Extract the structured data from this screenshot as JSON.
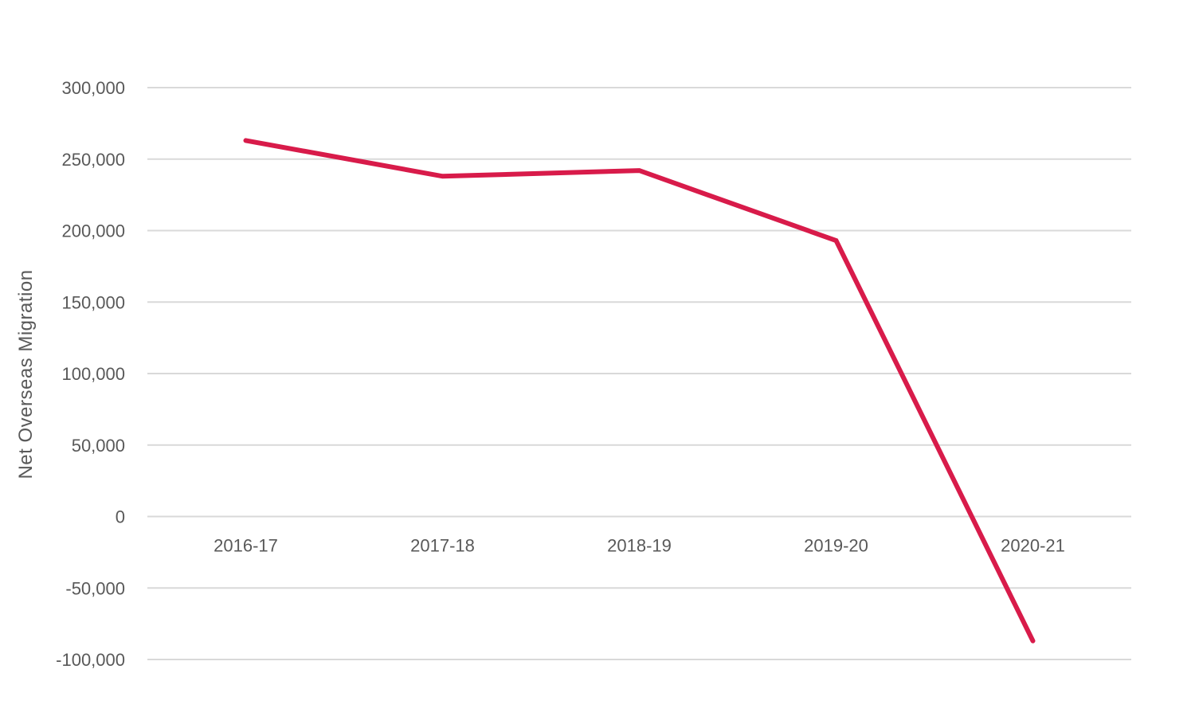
{
  "chart_data": {
    "type": "line",
    "title": "",
    "xlabel": "",
    "ylabel": "Net Overseas Migration",
    "categories": [
      "2016-17",
      "2017-18",
      "2018-19",
      "2019-20",
      "2020-21"
    ],
    "series": [
      {
        "values": [
          263000,
          238000,
          242000,
          193000,
          -87000
        ],
        "color": "#D81B4A"
      }
    ],
    "ylim": [
      -100000,
      300000
    ],
    "yticks": [
      300000,
      250000,
      200000,
      150000,
      100000,
      50000,
      0,
      -50000,
      -100000
    ],
    "ytick_labels": [
      "300,000",
      "250,000",
      "200,000",
      "150,000",
      "100,000",
      "50,000",
      "0",
      "-50,000",
      "-100,000"
    ],
    "grid": true,
    "gridline_color": "#D9D9D9",
    "legend": "none"
  }
}
